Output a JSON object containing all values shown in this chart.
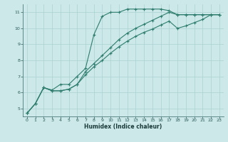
{
  "xlabel": "Humidex (Indice chaleur)",
  "bg_color": "#cce8e8",
  "grid_color": "#aad0d0",
  "line_color": "#2e7d6e",
  "xlim": [
    -0.5,
    23.5
  ],
  "ylim": [
    4.5,
    11.5
  ],
  "xticks": [
    0,
    1,
    2,
    3,
    4,
    5,
    6,
    7,
    8,
    9,
    10,
    11,
    12,
    13,
    14,
    15,
    16,
    17,
    18,
    19,
    20,
    21,
    22,
    23
  ],
  "yticks": [
    5,
    6,
    7,
    8,
    9,
    10,
    11
  ],
  "line1_x": [
    0,
    1,
    2,
    3,
    4,
    5,
    6,
    7,
    8,
    9,
    10,
    11,
    12,
    13,
    14,
    15,
    16,
    17,
    18,
    19,
    20,
    21,
    22,
    23
  ],
  "line1_y": [
    4.7,
    5.3,
    6.3,
    6.15,
    6.5,
    6.5,
    7.0,
    7.5,
    9.6,
    10.75,
    11.0,
    11.0,
    11.2,
    11.2,
    11.2,
    11.2,
    11.2,
    11.1,
    10.85,
    10.85,
    10.85,
    10.85,
    10.85,
    10.85
  ],
  "line2_x": [
    0,
    1,
    2,
    3,
    4,
    5,
    6,
    7,
    8,
    9,
    10,
    11,
    12,
    13,
    14,
    15,
    16,
    17,
    18,
    19,
    20,
    21,
    22,
    23
  ],
  "line2_y": [
    4.7,
    5.3,
    6.3,
    6.1,
    6.1,
    6.2,
    6.5,
    7.3,
    7.8,
    8.3,
    8.8,
    9.3,
    9.7,
    10.0,
    10.25,
    10.5,
    10.75,
    11.0,
    10.85,
    10.85,
    10.85,
    10.85,
    10.85,
    10.85
  ],
  "line3_x": [
    0,
    1,
    2,
    3,
    4,
    5,
    6,
    7,
    8,
    9,
    10,
    11,
    12,
    13,
    14,
    15,
    16,
    17,
    18,
    19,
    20,
    21,
    22,
    23
  ],
  "line3_y": [
    4.7,
    5.3,
    6.3,
    6.1,
    6.1,
    6.2,
    6.5,
    7.1,
    7.6,
    8.0,
    8.45,
    8.85,
    9.2,
    9.5,
    9.75,
    9.95,
    10.2,
    10.45,
    10.0,
    10.15,
    10.35,
    10.55,
    10.85,
    10.85
  ]
}
